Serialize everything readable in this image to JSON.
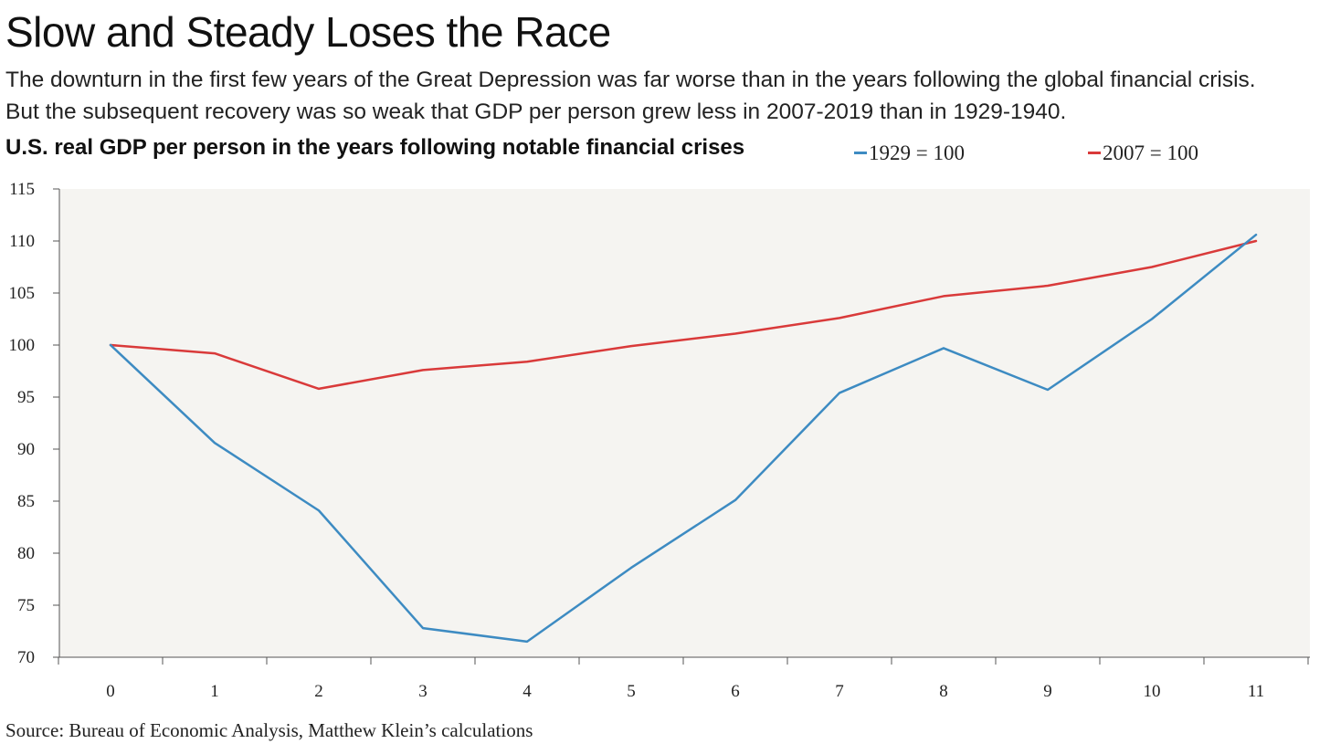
{
  "title": "Slow and Steady Loses the Race",
  "subtitle_lines": [
    "The downturn in the first few years of the Great Depression was far worse than in the years following the global financial crisis.",
    "But the subsequent recovery was so weak that GDP per person grew less in 2007-2019 than in 1929-1940."
  ],
  "source": "Source: Bureau of Economic Analysis, Matthew Klein’s calculations",
  "colors": {
    "series_1929": "#3d8bc2",
    "series_2007": "#d93a3a",
    "plot_background": "#f5f4f1",
    "axis": "#555555"
  },
  "chart_data": {
    "type": "line",
    "title": "U.S. real GDP per person in the years following notable financial crises",
    "xlabel": "",
    "ylabel": "",
    "x": [
      0,
      1,
      2,
      3,
      4,
      5,
      6,
      7,
      8,
      9,
      10,
      11
    ],
    "ylim": [
      70,
      115
    ],
    "yticks": [
      70,
      75,
      80,
      85,
      90,
      95,
      100,
      105,
      110,
      115
    ],
    "grid": false,
    "legend_position": "top-right",
    "series": [
      {
        "name": "1929 = 100",
        "color": "#3d8bc2",
        "values": [
          100,
          90.6,
          84.1,
          72.8,
          71.5,
          78.6,
          85.1,
          95.4,
          99.7,
          95.7,
          102.5,
          110.6
        ]
      },
      {
        "name": "2007 = 100",
        "color": "#d93a3a",
        "values": [
          100,
          99.2,
          95.8,
          97.6,
          98.4,
          99.9,
          101.1,
          102.6,
          104.7,
          105.7,
          107.5,
          110.0
        ]
      }
    ]
  }
}
